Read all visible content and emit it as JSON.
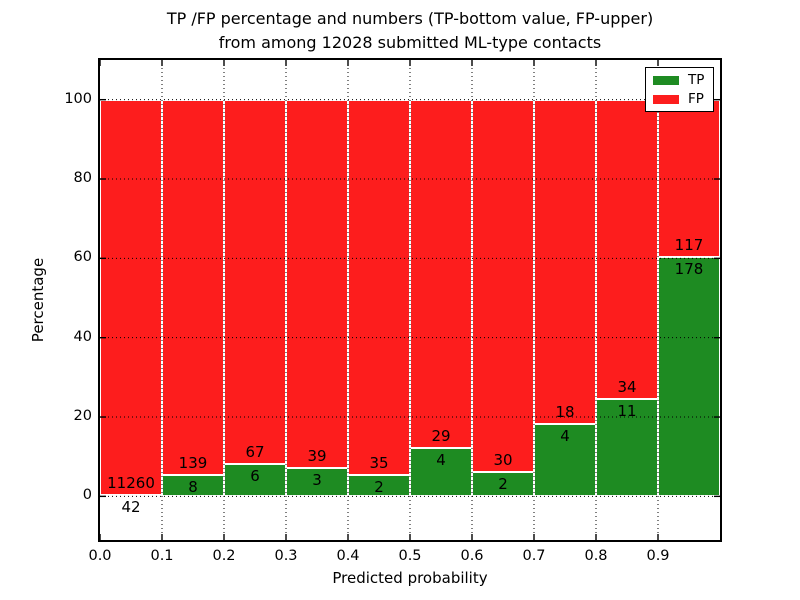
{
  "figure": {
    "title_line1": "TP /FP percentage and numbers (TP-bottom value, FP-upper)",
    "title_line2": "from among 12028 submitted ML-type contacts"
  },
  "chart_data": {
    "type": "bar",
    "stacked": true,
    "title": "TP /FP percentage and numbers (TP-bottom value, FP-upper) from among 12028 submitted ML-type contacts",
    "xlabel": "Predicted probability",
    "ylabel": "Percentage",
    "total_contacts": 12028,
    "bins": [
      0.0,
      0.1,
      0.2,
      0.3,
      0.4,
      0.5,
      0.6,
      0.7,
      0.8,
      0.9
    ],
    "bin_width": 0.1,
    "series": [
      {
        "name": "TP",
        "color": "#1e8b22",
        "counts": [
          42,
          8,
          6,
          3,
          2,
          4,
          2,
          4,
          11,
          178
        ]
      },
      {
        "name": "FP",
        "color": "#fd1d1d",
        "counts": [
          11260,
          139,
          67,
          39,
          35,
          29,
          30,
          18,
          34,
          117
        ]
      }
    ],
    "tp_percent": [
      0.37,
      5.44,
      8.22,
      7.14,
      5.41,
      12.12,
      6.25,
      18.18,
      24.44,
      60.34
    ],
    "x_ticks": [
      "0.0",
      "0.1",
      "0.2",
      "0.3",
      "0.4",
      "0.5",
      "0.6",
      "0.7",
      "0.8",
      "0.9"
    ],
    "y_ticks": [
      0,
      20,
      40,
      60,
      80,
      100
    ],
    "xlim": [
      0.0,
      1.0
    ],
    "ylim": [
      -11,
      110
    ],
    "grid": "dotted",
    "legend": {
      "position": "upper right",
      "entries": [
        {
          "label": "TP",
          "color": "#1e8b22"
        },
        {
          "label": "FP",
          "color": "#fd1d1d"
        }
      ]
    }
  }
}
